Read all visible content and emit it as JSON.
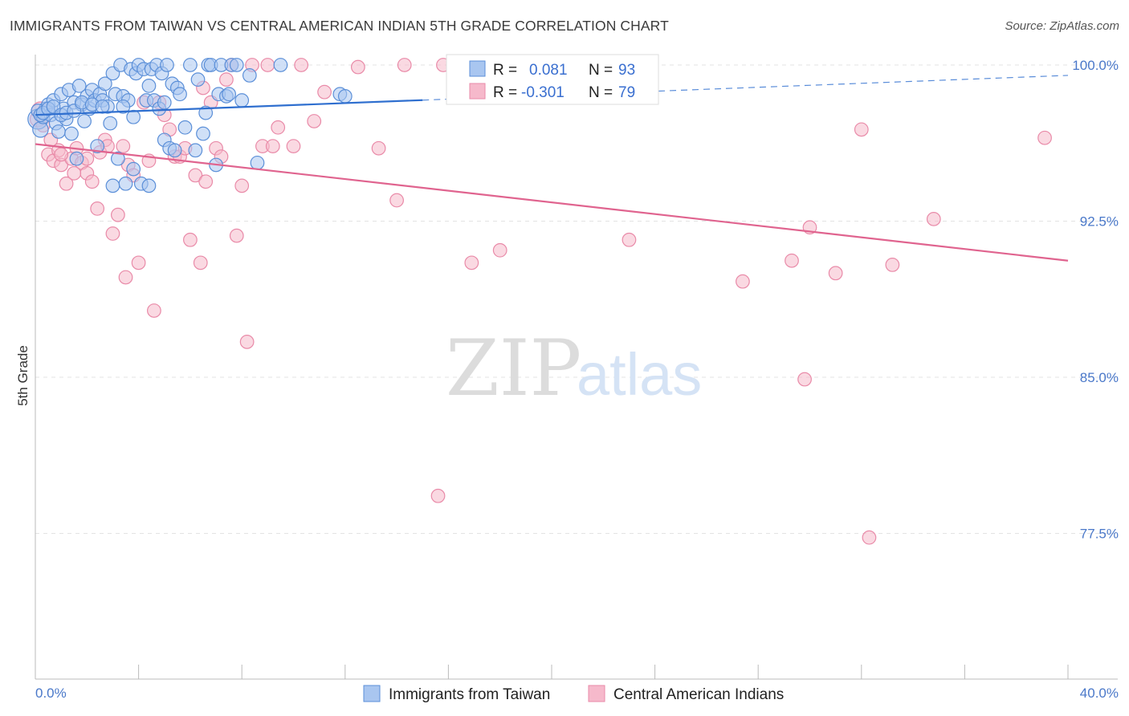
{
  "title": "IMMIGRANTS FROM TAIWAN VS CENTRAL AMERICAN INDIAN 5TH GRADE CORRELATION CHART",
  "source": "Source: ZipAtlas.com",
  "watermark": {
    "zip": "ZIP",
    "atlas": "atlas"
  },
  "colors": {
    "blue_fill": "#a9c6f0",
    "blue_stroke": "#5b8fd8",
    "blue_line": "#2f6fcf",
    "pink_fill": "#f6b9cb",
    "pink_stroke": "#e98aa8",
    "pink_line": "#e0648f",
    "grid": "#e3e3e3",
    "tick_text": "#4a78c9"
  },
  "legend": {
    "r_label": "R =",
    "n_label": "N =",
    "rows": [
      {
        "r": "0.081",
        "n": "93"
      },
      {
        "r": "-0.301",
        "n": "79"
      }
    ]
  },
  "bottom_legend": [
    "Immigrants from Taiwan",
    "Central American Indians"
  ],
  "chart_data": {
    "type": "scatter",
    "title": "IMMIGRANTS FROM TAIWAN VS CENTRAL AMERICAN INDIAN 5TH GRADE CORRELATION CHART",
    "xlabel": "",
    "ylabel": "5th Grade",
    "xlim": [
      0,
      40
    ],
    "ylim": [
      70.5,
      100.5
    ],
    "x_tick_labels": [
      "0.0%",
      "40.0%"
    ],
    "y_ticks": [
      77.5,
      85.0,
      92.5,
      100.0
    ],
    "y_tick_labels": [
      "77.5%",
      "85.0%",
      "92.5%",
      "100.0%"
    ],
    "grid": true,
    "legend_position": "top-center",
    "series": [
      {
        "name": "Immigrants from Taiwan",
        "R": 0.081,
        "N": 93,
        "trend": {
          "x0": 0,
          "y0": 97.6,
          "x1": 40,
          "y1": 99.5,
          "solid_until_x": 15
        },
        "x": [
          0.1,
          0.2,
          0.3,
          0.4,
          0.5,
          0.6,
          0.7,
          0.8,
          0.9,
          1.0,
          1.1,
          1.2,
          1.3,
          1.4,
          1.5,
          1.6,
          1.7,
          1.8,
          1.9,
          2.0,
          2.1,
          2.2,
          2.3,
          2.4,
          2.5,
          2.6,
          2.7,
          2.8,
          2.9,
          3.0,
          3.1,
          3.2,
          3.3,
          3.4,
          3.5,
          3.6,
          3.7,
          3.8,
          3.9,
          4.0,
          4.1,
          4.2,
          4.3,
          4.4,
          4.5,
          4.6,
          4.7,
          4.8,
          4.9,
          5.0,
          5.1,
          5.2,
          5.3,
          5.4,
          5.5,
          5.6,
          5.8,
          6.0,
          6.2,
          6.3,
          6.5,
          6.6,
          6.7,
          6.8,
          7.0,
          7.1,
          7.2,
          7.4,
          7.5,
          7.6,
          7.8,
          8.0,
          8.3,
          8.6,
          9.5,
          11.8,
          12.0,
          0.1,
          0.2,
          0.3,
          0.5,
          0.7,
          1.0,
          1.2,
          1.5,
          1.8,
          2.2,
          2.6,
          3.0,
          3.4,
          3.8,
          4.4,
          5.0
        ],
        "y": [
          97.4,
          96.9,
          97.5,
          97.9,
          98.1,
          97.6,
          98.3,
          97.2,
          96.8,
          98.6,
          97.9,
          97.4,
          98.8,
          96.7,
          98.2,
          95.5,
          99.0,
          98.1,
          97.3,
          98.5,
          97.9,
          98.8,
          98.3,
          96.1,
          98.6,
          98.3,
          99.1,
          98.0,
          97.2,
          99.6,
          98.6,
          95.5,
          100.0,
          98.5,
          94.3,
          98.3,
          99.8,
          95.0,
          99.6,
          100.0,
          94.3,
          99.8,
          98.3,
          99.0,
          99.8,
          98.3,
          100.0,
          97.9,
          99.6,
          96.4,
          100.0,
          96.0,
          99.1,
          95.9,
          98.9,
          98.6,
          97.0,
          100.0,
          95.9,
          99.3,
          96.7,
          97.7,
          100.0,
          100.0,
          95.2,
          98.6,
          100.0,
          98.5,
          98.6,
          100.0,
          100.0,
          98.3,
          99.5,
          95.3,
          100.0,
          98.6,
          98.5,
          97.8,
          97.6,
          97.7,
          97.9,
          98.0,
          97.6,
          97.7,
          97.8,
          98.2,
          98.1,
          98.0,
          94.2,
          98.0,
          97.5,
          94.2,
          98.2
        ],
        "sizes": [
          18,
          14,
          12,
          12,
          12,
          12,
          12,
          12,
          12,
          12,
          12,
          12,
          12,
          12,
          12,
          12,
          12,
          12,
          12,
          12,
          12,
          12,
          12,
          12,
          12,
          12,
          12,
          12,
          12,
          12,
          12,
          12,
          12,
          12,
          12,
          12,
          12,
          12,
          12,
          12,
          12,
          12,
          12,
          12,
          12,
          12,
          12,
          12,
          12,
          12,
          12,
          12,
          12,
          12,
          12,
          12,
          12,
          12,
          12,
          12,
          12,
          12,
          12,
          12,
          12,
          12,
          12,
          12,
          12,
          12,
          12,
          12,
          12,
          12,
          12,
          12,
          12,
          12,
          12,
          12,
          12,
          12,
          12,
          12,
          12,
          12,
          12,
          12,
          12,
          12,
          12,
          12,
          12
        ]
      },
      {
        "name": "Central American Indians",
        "R": -0.301,
        "N": 79,
        "trend": {
          "x0": 0,
          "y0": 96.2,
          "x1": 40,
          "y1": 90.6
        },
        "x": [
          0.1,
          0.3,
          0.5,
          0.7,
          0.9,
          1.0,
          1.2,
          1.4,
          1.6,
          1.8,
          2.0,
          2.2,
          2.4,
          2.5,
          2.7,
          2.8,
          3.0,
          3.2,
          3.4,
          3.5,
          3.6,
          3.8,
          4.0,
          4.2,
          4.4,
          4.6,
          4.8,
          5.0,
          5.2,
          5.4,
          5.6,
          5.8,
          6.0,
          6.2,
          6.4,
          6.5,
          6.6,
          6.8,
          7.0,
          7.2,
          7.4,
          7.6,
          7.8,
          8.0,
          8.2,
          8.4,
          8.8,
          9.0,
          9.2,
          9.4,
          10.0,
          10.3,
          10.8,
          11.2,
          12.5,
          13.3,
          14.0,
          14.3,
          15.6,
          15.8,
          16.9,
          18.0,
          19.0,
          23.0,
          27.4,
          30.0,
          29.3,
          29.8,
          31.0,
          32.0,
          32.3,
          33.2,
          34.8,
          39.1,
          0.2,
          0.6,
          1.0,
          1.5,
          2.0
        ],
        "y": [
          97.4,
          97.1,
          95.7,
          95.4,
          95.9,
          95.2,
          94.3,
          95.5,
          96.0,
          95.3,
          94.8,
          94.4,
          93.1,
          95.8,
          96.4,
          96.1,
          91.9,
          92.8,
          96.1,
          89.8,
          95.2,
          94.7,
          90.5,
          98.2,
          95.4,
          88.2,
          98.2,
          97.6,
          96.9,
          95.6,
          95.6,
          96.0,
          91.6,
          94.7,
          90.5,
          98.9,
          94.4,
          98.2,
          96.0,
          95.6,
          99.3,
          100.0,
          91.8,
          94.2,
          86.7,
          100.0,
          96.1,
          100.0,
          96.1,
          97.0,
          96.1,
          100.0,
          97.3,
          98.7,
          99.9,
          96.0,
          93.5,
          100.0,
          79.3,
          100.0,
          90.5,
          91.1,
          100.0,
          91.6,
          89.6,
          92.2,
          90.6,
          84.9,
          90.0,
          96.9,
          77.3,
          90.4,
          92.6,
          96.5,
          97.8,
          96.4,
          95.7,
          94.8,
          95.5
        ],
        "sizes": [
          14,
          12,
          12,
          12,
          12,
          12,
          12,
          12,
          12,
          12,
          12,
          12,
          12,
          12,
          12,
          12,
          12,
          12,
          12,
          12,
          12,
          12,
          12,
          12,
          12,
          12,
          12,
          12,
          12,
          12,
          12,
          12,
          12,
          12,
          12,
          12,
          12,
          12,
          12,
          12,
          12,
          12,
          12,
          12,
          12,
          12,
          12,
          12,
          12,
          12,
          12,
          12,
          12,
          12,
          12,
          12,
          12,
          12,
          12,
          12,
          12,
          12,
          12,
          12,
          12,
          12,
          12,
          12,
          12,
          12,
          12,
          12,
          12,
          12,
          16,
          12,
          12,
          12,
          12
        ]
      }
    ]
  }
}
